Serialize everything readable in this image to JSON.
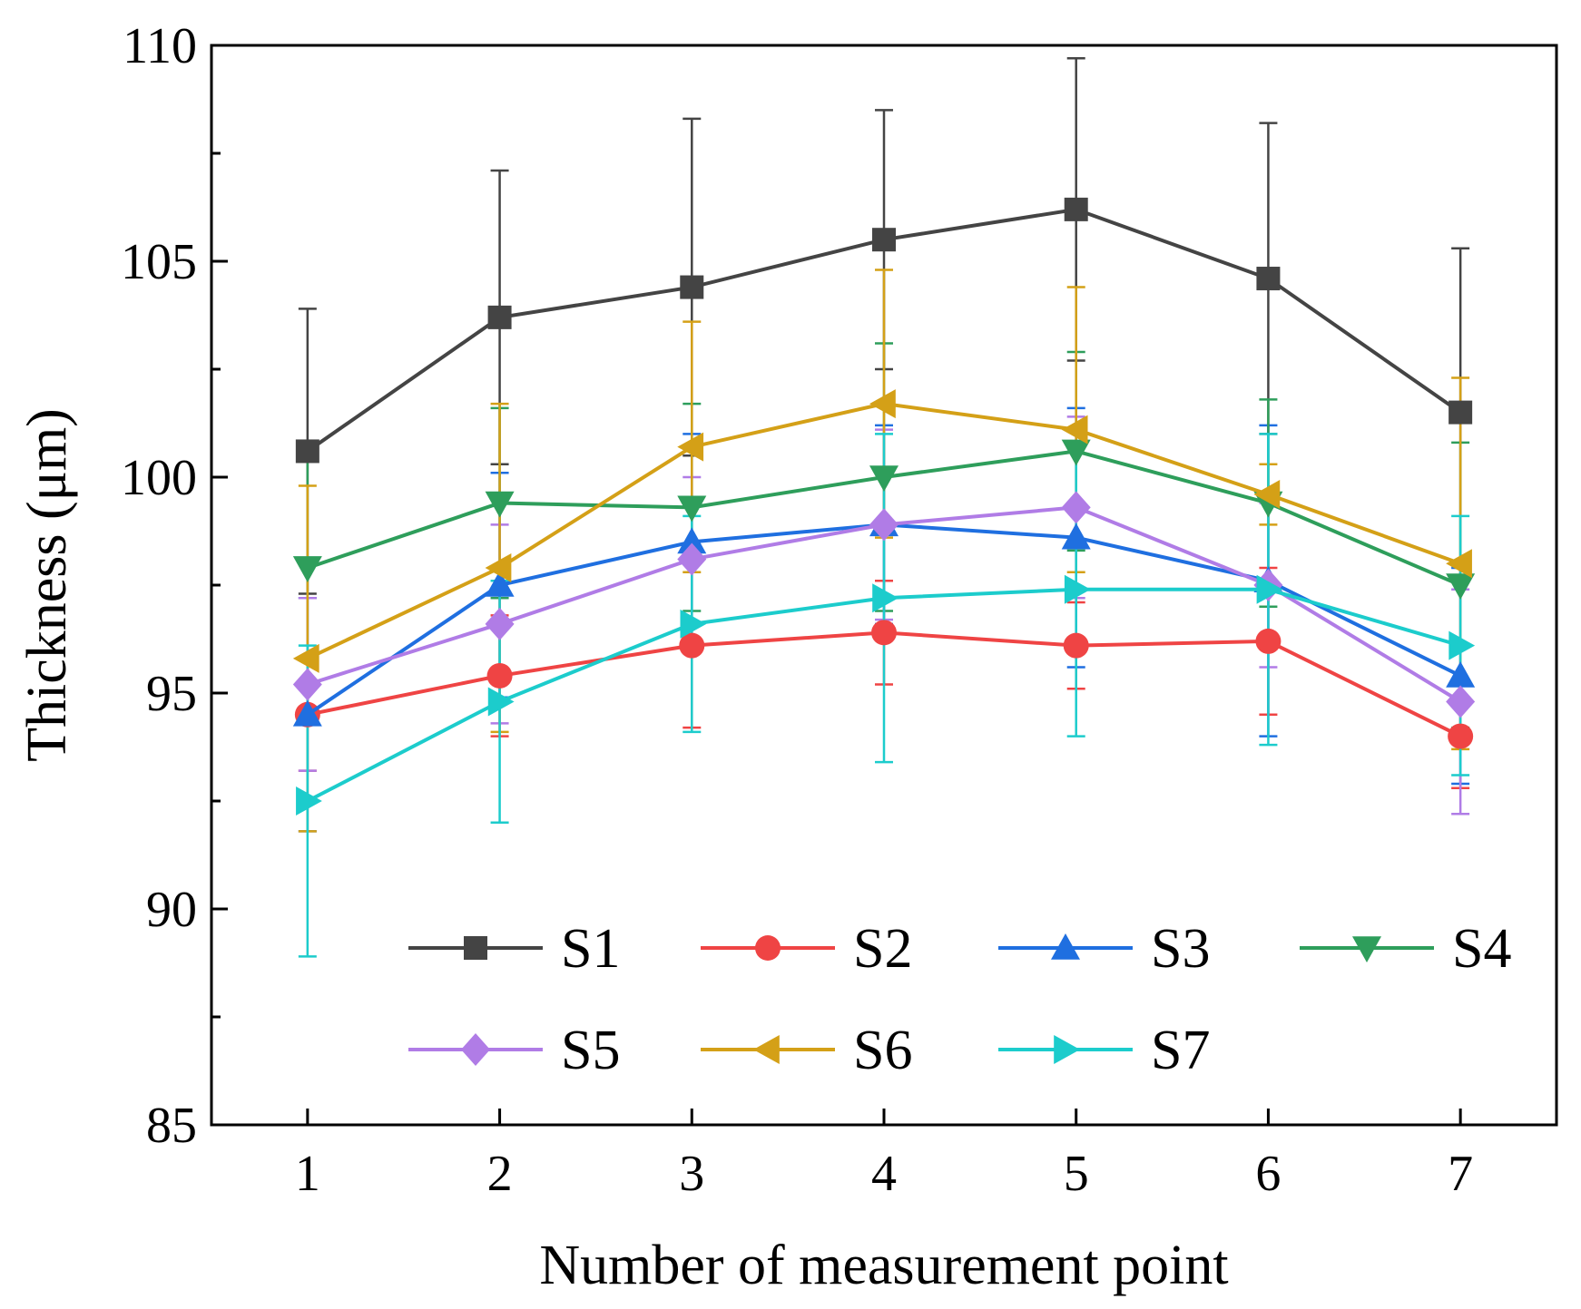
{
  "chart_data": {
    "type": "line",
    "xlabel": "Number of measurement point",
    "ylabel": "Thickness (μm)",
    "x": [
      1,
      2,
      3,
      4,
      5,
      6,
      7
    ],
    "xlim": [
      0.5,
      7.5
    ],
    "ylim": [
      85,
      110
    ],
    "x_ticks": [
      1,
      2,
      3,
      4,
      5,
      6,
      7
    ],
    "y_ticks": [
      85,
      90,
      95,
      100,
      105,
      110
    ],
    "legend_position": "bottom-inside",
    "series": [
      {
        "name": "S1",
        "color": "#444444",
        "marker": "square",
        "values": [
          100.6,
          103.7,
          104.4,
          105.5,
          106.2,
          104.6,
          101.5
        ],
        "errors": [
          3.3,
          3.4,
          3.9,
          3.0,
          3.5,
          3.6,
          3.8
        ]
      },
      {
        "name": "S2",
        "color": "#ef4444",
        "marker": "circle",
        "values": [
          94.5,
          95.4,
          96.1,
          96.4,
          96.1,
          96.2,
          94.0
        ],
        "errors": [
          1.3,
          1.4,
          1.9,
          1.2,
          1.0,
          1.7,
          1.2
        ]
      },
      {
        "name": "S3",
        "color": "#1f6fe0",
        "marker": "triangle-up",
        "values": [
          94.5,
          97.5,
          98.5,
          98.9,
          98.6,
          97.6,
          95.4
        ],
        "errors": [
          2.7,
          2.6,
          2.5,
          2.3,
          3.0,
          3.6,
          2.5
        ]
      },
      {
        "name": "S4",
        "color": "#2e9e5b",
        "marker": "triangle-down",
        "values": [
          97.9,
          99.4,
          99.3,
          100.0,
          100.6,
          99.4,
          97.5
        ],
        "errors": [
          2.6,
          2.2,
          2.4,
          3.1,
          2.3,
          2.4,
          3.3
        ]
      },
      {
        "name": "S5",
        "color": "#b07ce6",
        "marker": "diamond",
        "values": [
          95.2,
          96.6,
          98.1,
          98.9,
          99.3,
          97.5,
          94.8
        ],
        "errors": [
          2.0,
          2.3,
          1.9,
          2.2,
          2.1,
          1.9,
          2.6
        ]
      },
      {
        "name": "S6",
        "color": "#d4a017",
        "marker": "triangle-left",
        "values": [
          95.8,
          97.9,
          100.7,
          101.7,
          101.1,
          99.6,
          98.0
        ],
        "errors": [
          4.0,
          3.8,
          2.9,
          3.1,
          3.3,
          0.7,
          4.3
        ]
      },
      {
        "name": "S7",
        "color": "#1ccccc",
        "marker": "triangle-right",
        "values": [
          92.5,
          94.8,
          96.6,
          97.2,
          97.4,
          97.4,
          96.1
        ],
        "errors": [
          3.6,
          2.8,
          2.5,
          3.8,
          3.4,
          3.6,
          3.0
        ]
      }
    ]
  }
}
